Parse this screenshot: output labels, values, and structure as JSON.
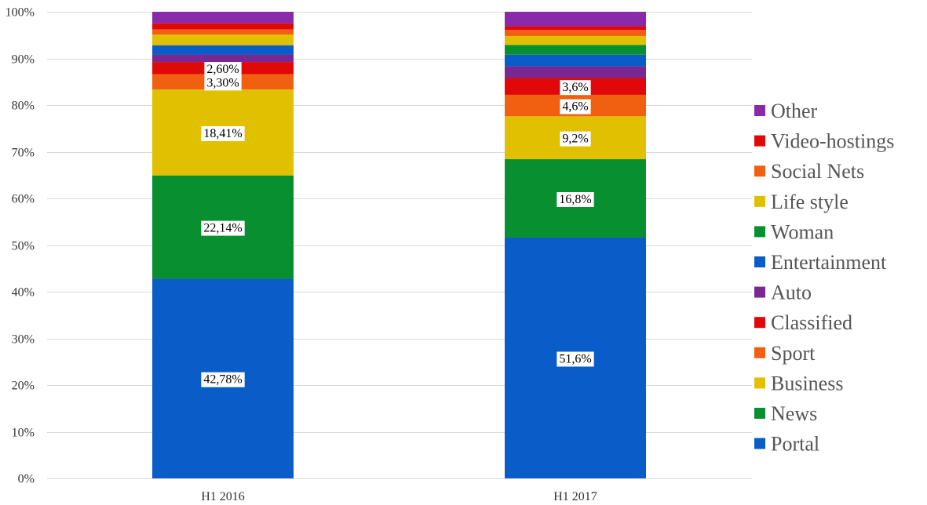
{
  "chart_data": {
    "type": "bar",
    "stacked": true,
    "percent_stacked": true,
    "categories": [
      "H1 2016",
      "H1 2017"
    ],
    "ylim": [
      0,
      100
    ],
    "yticks": [
      "0%",
      "10%",
      "20%",
      "30%",
      "40%",
      "50%",
      "60%",
      "70%",
      "80%",
      "90%",
      "100%"
    ],
    "grid": true,
    "legend_position": "right",
    "series": [
      {
        "name": "Portal",
        "color": "#0a5cc8",
        "values": [
          42.78,
          51.6
        ],
        "labels": [
          "42,78%",
          "51,6%"
        ]
      },
      {
        "name": "News",
        "color": "#089030",
        "values": [
          22.14,
          16.8
        ],
        "labels": [
          "22,14%",
          "16,8%"
        ]
      },
      {
        "name": "Business",
        "color": "#e0c000",
        "values": [
          18.41,
          9.2
        ],
        "labels": [
          "18,41%",
          "9,2%"
        ]
      },
      {
        "name": "Sport",
        "color": "#f06010",
        "values": [
          3.3,
          4.6
        ],
        "labels": [
          "3,30%",
          "4,6%"
        ]
      },
      {
        "name": "Classified",
        "color": "#e00808",
        "values": [
          2.6,
          3.6
        ],
        "labels": [
          "2,60%",
          "3,6%"
        ]
      },
      {
        "name": "Auto",
        "color": "#782890",
        "values": [
          1.6,
          2.5
        ],
        "labels": [
          "",
          ""
        ]
      },
      {
        "name": "Entertainment",
        "color": "#0a5cc8",
        "values": [
          2.0,
          2.5
        ],
        "labels": [
          "",
          ""
        ]
      },
      {
        "name": "Woman",
        "color": "#089030",
        "values": [
          0.0,
          2.1
        ],
        "labels": [
          "",
          ""
        ]
      },
      {
        "name": "Life style",
        "color": "#e0c000",
        "values": [
          2.3,
          1.9
        ],
        "labels": [
          "",
          ""
        ]
      },
      {
        "name": "Social Nets",
        "color": "#f06010",
        "values": [
          1.1,
          1.3
        ],
        "labels": [
          "",
          ""
        ]
      },
      {
        "name": "Video-hostings",
        "color": "#e00808",
        "values": [
          1.3,
          0.8
        ],
        "labels": [
          "",
          ""
        ]
      },
      {
        "name": "Other",
        "color": "#8a2aa8",
        "values": [
          2.47,
          3.1
        ],
        "labels": [
          "",
          ""
        ]
      }
    ]
  }
}
